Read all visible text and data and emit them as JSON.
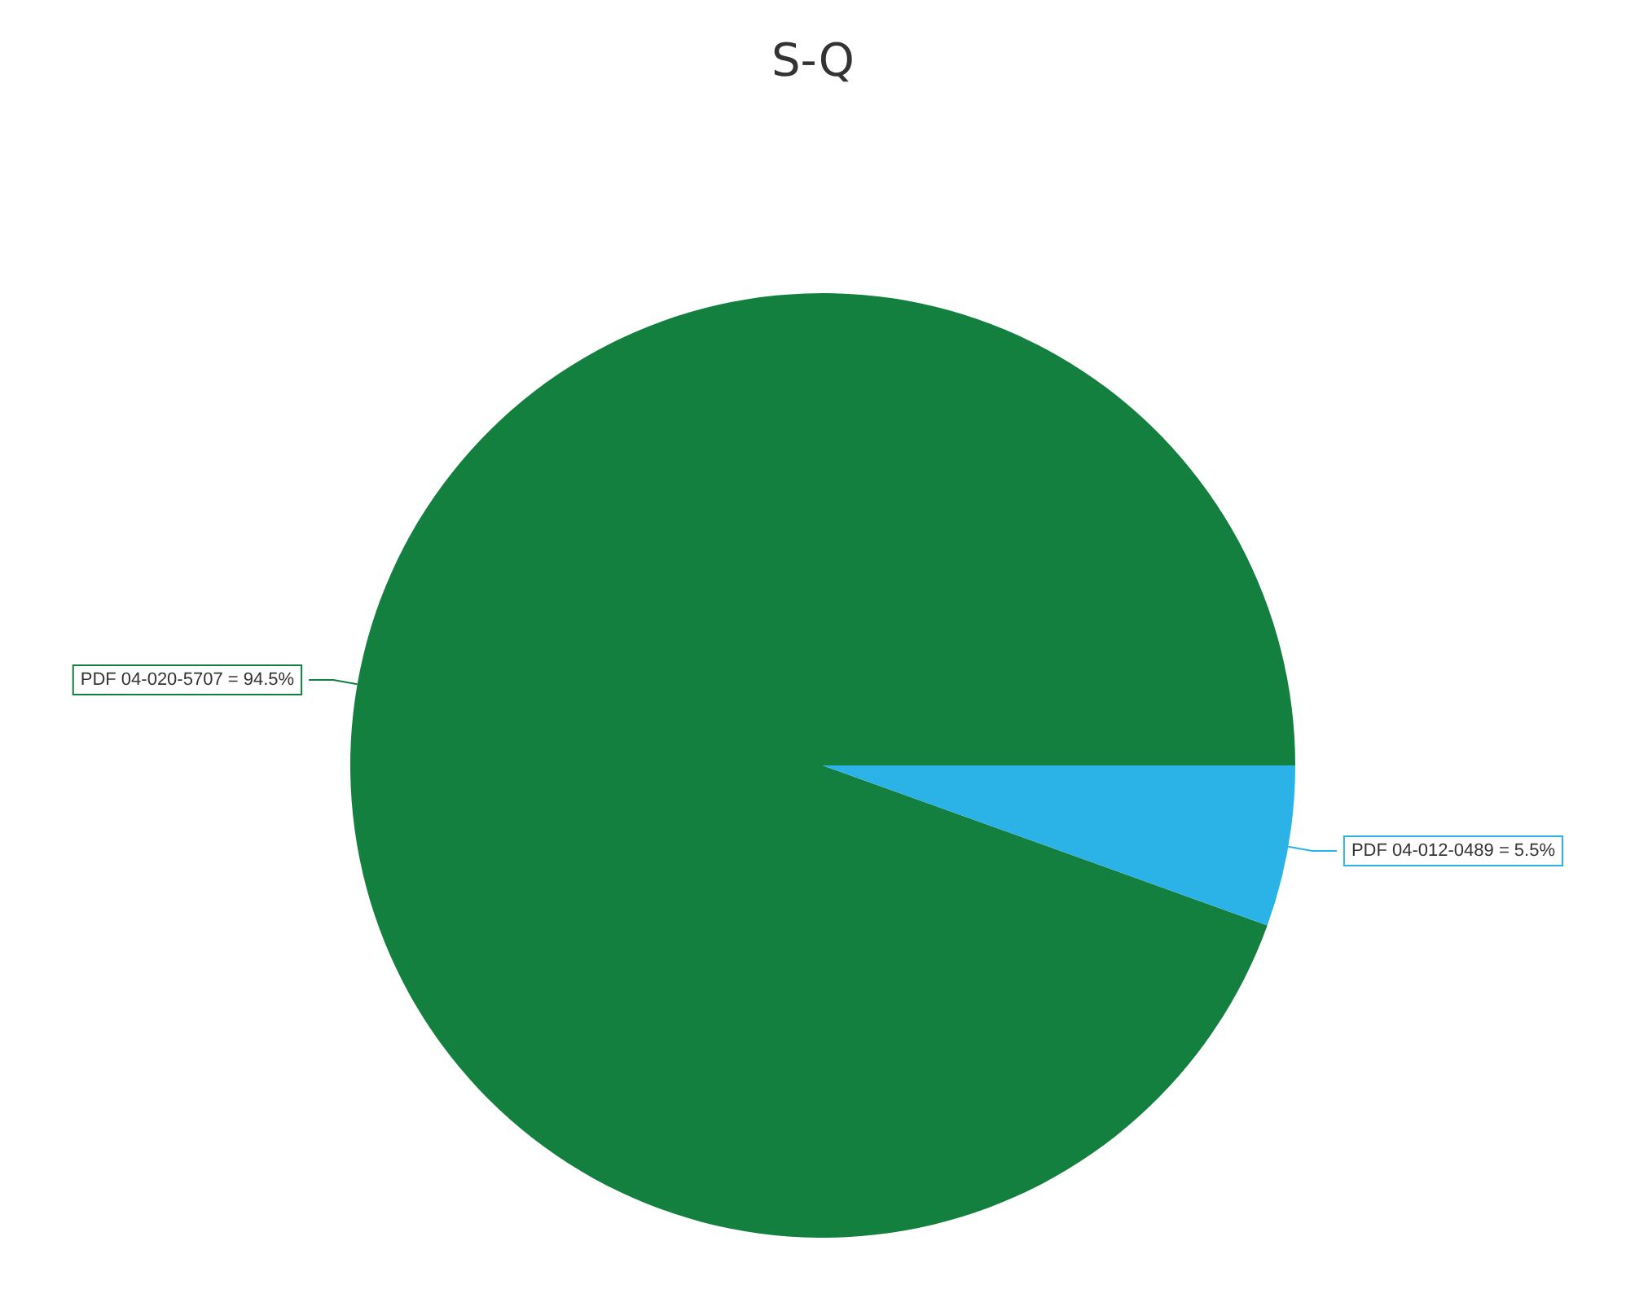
{
  "chart_data": {
    "type": "pie",
    "title": "S-Q",
    "categories": [
      "PDF 04-020-5707 = 94.5%",
      "PDF 04-012-0489 = 5.5%"
    ],
    "values": [
      94.5,
      5.5
    ],
    "colors": [
      "#13803f",
      "#2bb2e6"
    ],
    "legend": false
  }
}
